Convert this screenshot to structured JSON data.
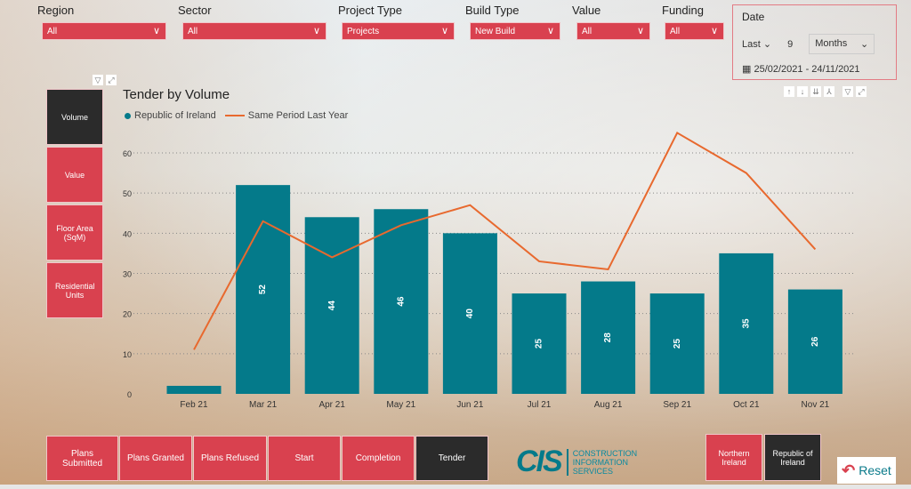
{
  "filters": [
    {
      "label": "Region",
      "value": "All"
    },
    {
      "label": "Sector",
      "value": "All"
    },
    {
      "label": "Project Type",
      "value": "Projects"
    },
    {
      "label": "Build Type",
      "value": "New Build"
    },
    {
      "label": "Value",
      "value": "All"
    },
    {
      "label": "Funding",
      "value": "All"
    }
  ],
  "date": {
    "label": "Date",
    "mode": "Last",
    "count": "9",
    "unit": "Months",
    "range": "25/02/2021 - 24/11/2021"
  },
  "measures": [
    {
      "label": "Volume",
      "active": true
    },
    {
      "label": "Value",
      "active": false
    },
    {
      "label": "Floor Area (SqM)",
      "active": false
    },
    {
      "label": "Residential Units",
      "active": false
    }
  ],
  "stages": [
    {
      "label": "Plans Submitted",
      "active": false
    },
    {
      "label": "Plans Granted",
      "active": false
    },
    {
      "label": "Plans Refused",
      "active": false
    },
    {
      "label": "Start",
      "active": false
    },
    {
      "label": "Completion",
      "active": false
    },
    {
      "label": "Tender",
      "active": true
    }
  ],
  "regions": [
    {
      "label": "Northern Ireland",
      "active": false
    },
    {
      "label": "Republic of Ireland",
      "active": true
    }
  ],
  "logo": {
    "text": "CIS",
    "sub": "CONSTRUCTION INFORMATION SERVICES"
  },
  "reset_label": "Reset",
  "colors": {
    "accent": "#d9414f",
    "active": "#2b2b2b",
    "bar": "#047a8a",
    "line": "#e8692e"
  },
  "chart_data": {
    "type": "bar",
    "title": "Tender by Volume",
    "categories": [
      "Feb 21",
      "Mar 21",
      "Apr 21",
      "May 21",
      "Jun 21",
      "Jul 21",
      "Aug 21",
      "Sep 21",
      "Oct 21",
      "Nov 21"
    ],
    "series": [
      {
        "name": "Republic of Ireland",
        "type": "bar",
        "values": [
          2,
          52,
          44,
          46,
          40,
          25,
          28,
          25,
          35,
          26
        ],
        "labels": [
          "",
          "52",
          "44",
          "46",
          "40",
          "25",
          "28",
          "25",
          "35",
          "26"
        ]
      },
      {
        "name": "Same Period Last Year",
        "type": "line",
        "values": [
          11,
          43,
          34,
          42,
          47,
          33,
          31,
          65,
          55,
          36
        ]
      }
    ],
    "yticks": [
      0,
      10,
      20,
      30,
      40,
      50,
      60
    ],
    "ylim": [
      0,
      65
    ],
    "grid": true,
    "legend": "top-left"
  }
}
